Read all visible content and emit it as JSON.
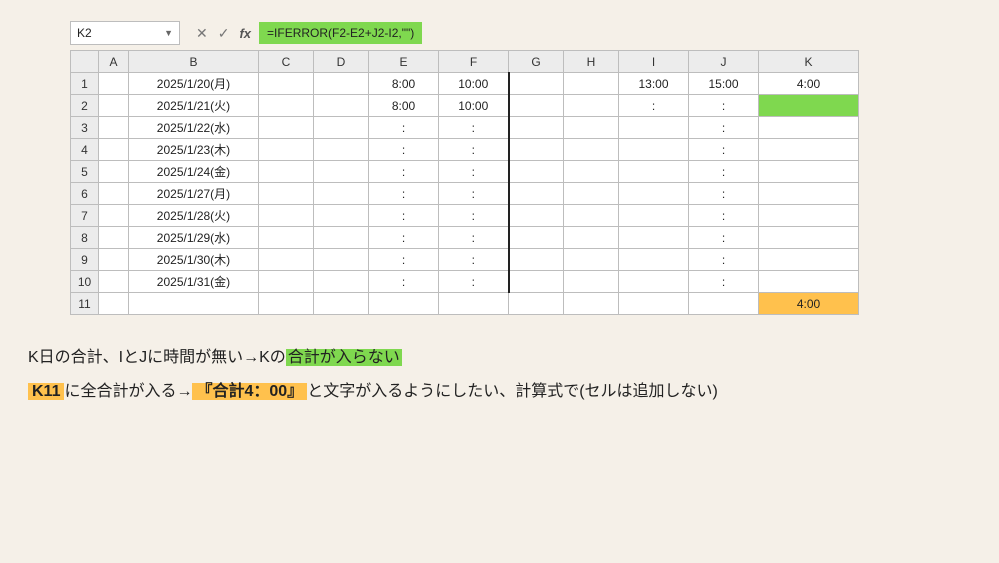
{
  "formula_bar": {
    "cell_ref": "K2",
    "fx_label": "fx",
    "formula": "=IFERROR(F2-E2+J2-I2,\"\")"
  },
  "columns": [
    "A",
    "B",
    "C",
    "D",
    "E",
    "F",
    "G",
    "H",
    "I",
    "J",
    "K"
  ],
  "row_headers": [
    "1",
    "2",
    "3",
    "4",
    "5",
    "6",
    "7",
    "8",
    "9",
    "10",
    "11"
  ],
  "rows": [
    {
      "B": "2025/1/20(月)",
      "E": "8:00",
      "F": "10:00",
      "I": "13:00",
      "J": "15:00",
      "K": "4:00"
    },
    {
      "B": "2025/1/21(火)",
      "E": "8:00",
      "F": "10:00",
      "I": ":",
      "J": ":",
      "K": ""
    },
    {
      "B": "2025/1/22(水)",
      "E": ":",
      "F": ":",
      "I": "",
      "J": ":",
      "K": ""
    },
    {
      "B": "2025/1/23(木)",
      "E": ":",
      "F": ":",
      "I": "",
      "J": ":",
      "K": ""
    },
    {
      "B": "2025/1/24(金)",
      "E": ":",
      "F": ":",
      "I": "",
      "J": ":",
      "K": ""
    },
    {
      "B": "2025/1/27(月)",
      "E": ":",
      "F": ":",
      "I": "",
      "J": ":",
      "K": ""
    },
    {
      "B": "2025/1/28(火)",
      "E": ":",
      "F": ":",
      "I": "",
      "J": ":",
      "K": ""
    },
    {
      "B": "2025/1/29(水)",
      "E": ":",
      "F": ":",
      "I": "",
      "J": ":",
      "K": ""
    },
    {
      "B": "2025/1/30(木)",
      "E": ":",
      "F": ":",
      "I": "",
      "J": ":",
      "K": ""
    },
    {
      "B": "2025/1/31(金)",
      "E": ":",
      "F": ":",
      "I": "",
      "J": ":",
      "K": ""
    },
    {
      "B": "",
      "E": "",
      "F": "",
      "I": "",
      "J": "",
      "K": "4:00"
    }
  ],
  "notes": {
    "line1_pre": "K日の合計、IとJに時間が無い→Kの",
    "line1_hl": "合計が入らない",
    "line2_hl1": "K11",
    "line2_mid": "に全合計が入る→",
    "line2_hl2": "『合計4：00』",
    "line2_post": "と文字が入るようにしたい、計算式で(セルは追加しない)"
  },
  "colors": {
    "highlight_green": "#7fd84f",
    "highlight_orange": "#ffc14d",
    "grid_border": "#bdbdbd",
    "header_bg": "#ececec",
    "page_bg": "#f5f0e8"
  }
}
